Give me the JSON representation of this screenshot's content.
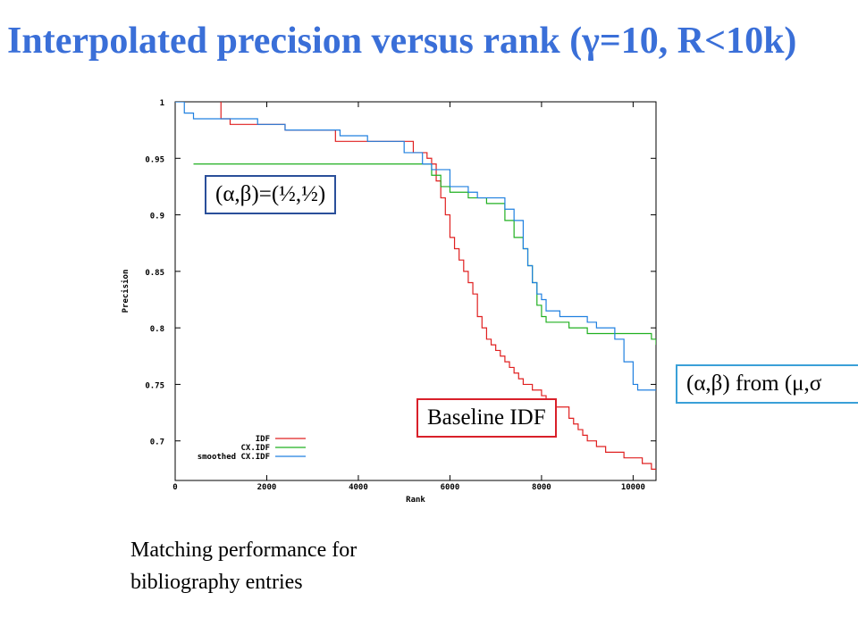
{
  "title": "Interpolated precision versus rank (γ=10, R<10k)",
  "callouts": {
    "alpha_beta_half": "(α,β)=(½,½)",
    "baseline": "Baseline IDF",
    "from_mu_sigma": "(α,β) from (μ,σ"
  },
  "caption": "Matching performance for bibliography entries",
  "chart_data": {
    "type": "line",
    "xlabel": "Rank",
    "ylabel": "Precision",
    "xlim": [
      0,
      10500
    ],
    "ylim": [
      0.665,
      1.0
    ],
    "xticks": [
      0,
      2000,
      4000,
      6000,
      8000,
      10000
    ],
    "yticks": [
      0.7,
      0.75,
      0.8,
      0.85,
      0.9,
      0.95,
      1
    ],
    "ytick_labels": [
      "0.7",
      "0.75",
      "0.8",
      "0.85",
      "0.9",
      "0.95",
      "1"
    ],
    "grid": false,
    "legend_position": "bottom-left",
    "series": [
      {
        "name": "IDF",
        "color": "#e02020",
        "x": [
          1000,
          1000,
          1200,
          2400,
          2400,
          3400,
          3500,
          4600,
          5200,
          5500,
          5600,
          5700,
          5800,
          5900,
          6000,
          6100,
          6200,
          6300,
          6400,
          6500,
          6600,
          6700,
          6800,
          6900,
          7000,
          7100,
          7200,
          7300,
          7400,
          7500,
          7600,
          7700,
          7800,
          7900,
          8000,
          8100,
          8200,
          8300,
          8400,
          8500,
          8600,
          8700,
          8800,
          8900,
          9000,
          9200,
          9400,
          9600,
          9800,
          10000,
          10200,
          10400,
          10500
        ],
        "y": [
          1.0,
          0.985,
          0.98,
          0.98,
          0.975,
          0.975,
          0.965,
          0.965,
          0.955,
          0.95,
          0.945,
          0.93,
          0.915,
          0.9,
          0.88,
          0.87,
          0.86,
          0.85,
          0.84,
          0.83,
          0.81,
          0.8,
          0.79,
          0.785,
          0.78,
          0.775,
          0.77,
          0.765,
          0.76,
          0.755,
          0.75,
          0.75,
          0.745,
          0.745,
          0.74,
          0.735,
          0.735,
          0.73,
          0.73,
          0.73,
          0.72,
          0.715,
          0.71,
          0.705,
          0.7,
          0.695,
          0.69,
          0.69,
          0.685,
          0.685,
          0.68,
          0.675,
          0.675
        ]
      },
      {
        "name": "CX.IDF",
        "color": "#20b020",
        "x": [
          400,
          5400,
          5600,
          5800,
          6000,
          6200,
          6400,
          6600,
          6800,
          7000,
          7200,
          7400,
          7600,
          7700,
          7800,
          7900,
          8000,
          8100,
          8200,
          8400,
          8600,
          8800,
          9000,
          9200,
          9400,
          9600,
          9800,
          10000,
          10200,
          10400,
          10500
        ],
        "y": [
          0.945,
          0.945,
          0.935,
          0.925,
          0.92,
          0.92,
          0.915,
          0.915,
          0.91,
          0.91,
          0.895,
          0.88,
          0.87,
          0.855,
          0.84,
          0.82,
          0.81,
          0.805,
          0.805,
          0.805,
          0.8,
          0.8,
          0.795,
          0.795,
          0.795,
          0.795,
          0.795,
          0.795,
          0.795,
          0.79,
          0.785
        ]
      },
      {
        "name": "smoothed CX.IDF",
        "color": "#2080e0",
        "x": [
          0,
          200,
          400,
          600,
          1200,
          1800,
          2400,
          3000,
          3600,
          4200,
          4800,
          5000,
          5200,
          5400,
          5600,
          5800,
          6000,
          6200,
          6400,
          6600,
          6800,
          7000,
          7200,
          7400,
          7600,
          7700,
          7800,
          7900,
          8000,
          8100,
          8200,
          8400,
          8600,
          8800,
          9000,
          9200,
          9400,
          9600,
          9800,
          10000,
          10100,
          10200,
          10400,
          10500
        ],
        "y": [
          1.0,
          0.99,
          0.985,
          0.985,
          0.985,
          0.98,
          0.975,
          0.975,
          0.97,
          0.965,
          0.965,
          0.955,
          0.955,
          0.945,
          0.94,
          0.94,
          0.925,
          0.925,
          0.92,
          0.915,
          0.915,
          0.915,
          0.905,
          0.895,
          0.87,
          0.855,
          0.84,
          0.83,
          0.825,
          0.815,
          0.815,
          0.81,
          0.81,
          0.81,
          0.805,
          0.8,
          0.8,
          0.79,
          0.77,
          0.75,
          0.745,
          0.745,
          0.745,
          0.745
        ]
      }
    ]
  }
}
